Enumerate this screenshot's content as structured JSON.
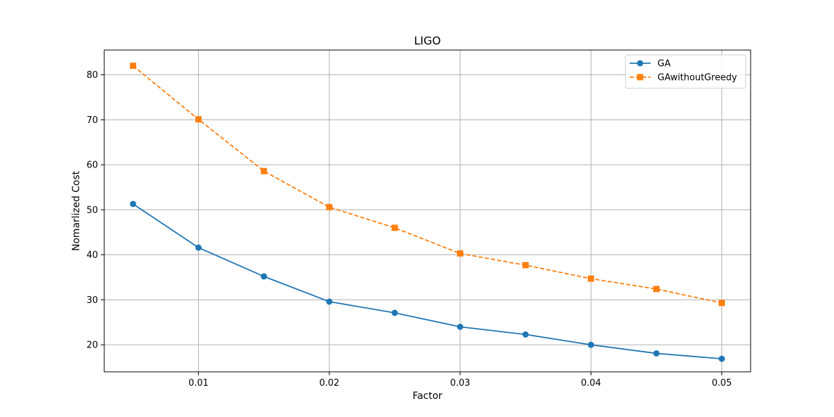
{
  "chart_data": {
    "type": "line",
    "title": "LIGO",
    "xlabel": "Factor",
    "ylabel": "Nomarlized Cost",
    "xlim": [
      0.0028,
      0.0522
    ],
    "ylim": [
      14,
      85.5
    ],
    "xticks": [
      0.01,
      0.02,
      0.03,
      0.04,
      0.05
    ],
    "xtick_labels": [
      "0.01",
      "0.02",
      "0.03",
      "0.04",
      "0.05"
    ],
    "yticks": [
      20,
      30,
      40,
      50,
      60,
      70,
      80
    ],
    "ytick_labels": [
      "20",
      "30",
      "40",
      "50",
      "60",
      "70",
      "80"
    ],
    "grid": true,
    "legend_position": "top-right",
    "x": [
      0.005,
      0.01,
      0.015,
      0.02,
      0.025,
      0.03,
      0.035,
      0.04,
      0.045,
      0.05
    ],
    "series": [
      {
        "name": "GA",
        "values": [
          51.3,
          41.6,
          35.2,
          29.6,
          27.1,
          24.0,
          22.3,
          20.0,
          18.1,
          16.9
        ],
        "color": "#1f77b4",
        "line_style": "solid",
        "marker": "circle"
      },
      {
        "name": "GAwithoutGreedy",
        "values": [
          82.0,
          70.1,
          58.6,
          50.6,
          46.0,
          40.3,
          37.7,
          34.7,
          32.4,
          29.3
        ],
        "color": "#ff7f0e",
        "line_style": "dashed",
        "marker": "square"
      }
    ]
  }
}
